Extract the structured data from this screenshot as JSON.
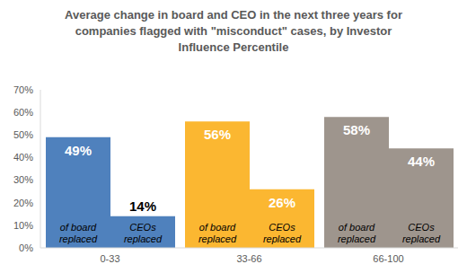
{
  "chart_data": {
    "type": "bar",
    "title": "Average change in board and CEO in the next three years for companies flagged with \"misconduct\" cases, by Investor Influence Percentile",
    "categories": [
      "0-33",
      "33-66",
      "66-100"
    ],
    "series": [
      {
        "name": "of board replaced",
        "colors": [
          "#4f81bd",
          "#fbb731",
          "#9e958d"
        ],
        "values": [
          49,
          56,
          58
        ],
        "value_labels": [
          "49%",
          "56%",
          "58%"
        ]
      },
      {
        "name": "CEOs replaced",
        "colors": [
          "#4f81bd",
          "#fbb731",
          "#9e958d"
        ],
        "values": [
          14,
          26,
          44
        ],
        "value_labels": [
          "14%",
          "26%",
          "44%"
        ]
      }
    ],
    "ylim": [
      0,
      70
    ],
    "yticks": [
      {
        "value": 0,
        "label": "0%"
      },
      {
        "value": 10,
        "label": "10%"
      },
      {
        "value": 20,
        "label": "20%"
      },
      {
        "value": 30,
        "label": "30%"
      },
      {
        "value": 40,
        "label": "40%"
      },
      {
        "value": 50,
        "label": "50%"
      },
      {
        "value": 60,
        "label": "60%"
      },
      {
        "value": 70,
        "label": "70%"
      }
    ],
    "data_labels": true,
    "grid": false
  }
}
